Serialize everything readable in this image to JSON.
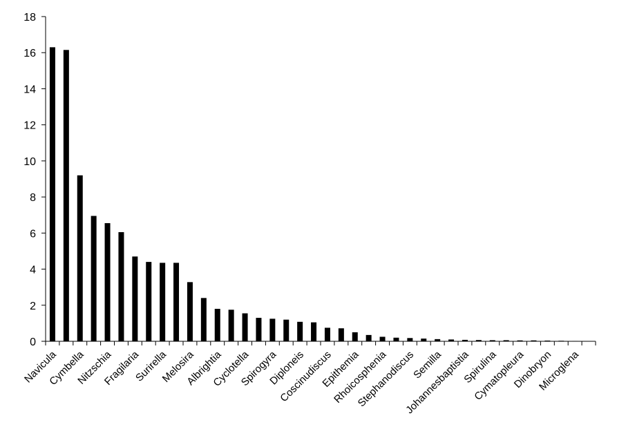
{
  "chart_data": {
    "type": "bar",
    "title": "",
    "xlabel": "",
    "ylabel": "",
    "ylim": [
      0,
      18
    ],
    "yticks": [
      0,
      2,
      4,
      6,
      8,
      10,
      12,
      14,
      16,
      18
    ],
    "grid": false,
    "legend": "none",
    "bar_color": "#000000",
    "categories": [
      "Navicula",
      "",
      "Cymbella",
      "",
      "Nitzschia",
      "",
      "Fragilaria",
      "",
      "Surirella",
      "",
      "Melosira",
      "",
      "Albrightia",
      "",
      "Cyclotella",
      "",
      "Spirogyra",
      "",
      "Diploneis",
      "",
      "Coscinudiscus",
      "",
      "Epithemia",
      "",
      "Rhoicosphenia",
      "",
      "Stephanodiscus",
      "",
      "Semilla",
      "",
      "Johannesbaptistia",
      "",
      "Spirulina",
      "",
      "Cymatopleura",
      "",
      "Dinobryon",
      "",
      "Microglena",
      ""
    ],
    "values": [
      16.3,
      16.15,
      9.2,
      6.95,
      6.55,
      6.05,
      4.7,
      4.4,
      4.35,
      4.35,
      3.28,
      2.4,
      1.8,
      1.75,
      1.55,
      1.3,
      1.25,
      1.2,
      1.08,
      1.05,
      0.75,
      0.72,
      0.5,
      0.35,
      0.25,
      0.2,
      0.18,
      0.15,
      0.12,
      0.1,
      0.08,
      0.07,
      0.06,
      0.06,
      0.05,
      0.05,
      0.04,
      0.03,
      0.02,
      0.01
    ]
  }
}
